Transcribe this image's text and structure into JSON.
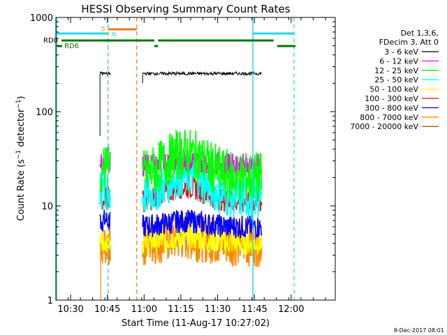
{
  "chart_data": {
    "type": "line",
    "title": "HESSI Observing Summary Count Rates",
    "xlabel": "Start Time (11-Aug-17 10:27:02)",
    "ylabel": "Count Rate (s⁻¹ detector⁻¹)",
    "ylabel_main": "Count Rate (s",
    "ylabel_sup1": "−1",
    "ylabel_mid": " detector",
    "ylabel_sup2": "−1",
    "ylabel_end": ")",
    "yscale": "log",
    "ylim": [
      1,
      1000
    ],
    "xlim_minutes": [
      10.4,
      12.3
    ],
    "y_ticks": [
      {
        "v": 1,
        "label": "1"
      },
      {
        "v": 10,
        "label": "10"
      },
      {
        "v": 100,
        "label": "100"
      },
      {
        "v": 1000,
        "label": "1000"
      }
    ],
    "x_ticks": [
      {
        "t": 10.5,
        "label": "10:30"
      },
      {
        "t": 10.75,
        "label": "10:45"
      },
      {
        "t": 11.0,
        "label": "11:00"
      },
      {
        "t": 11.25,
        "label": "11:15"
      },
      {
        "t": 11.5,
        "label": "11:30"
      },
      {
        "t": 11.75,
        "label": "11:45"
      },
      {
        "t": 12.0,
        "label": "12:00"
      }
    ],
    "legend_header": [
      "Det 1,3,6,",
      "FDecim 3, Att 0"
    ],
    "series": [
      {
        "name": "3 - 6 keV",
        "color": "#000000"
      },
      {
        "name": "6 - 12 keV",
        "color": "#ff00ff"
      },
      {
        "name": "12 - 25 keV",
        "color": "#00ff00"
      },
      {
        "name": "25 - 50 keV",
        "color": "#00ffff"
      },
      {
        "name": "50 - 100 keV",
        "color": "#ffff00"
      },
      {
        "name": "100 - 300 keV",
        "color": "#ff0000"
      },
      {
        "name": "300 - 800 keV",
        "color": "#0000ff"
      },
      {
        "name": "800 - 7000 keV",
        "color": "#ff8800"
      },
      {
        "name": "7000 - 20000 keV",
        "color": "#aa5500"
      }
    ],
    "segments": [
      {
        "t0": 10.7,
        "t1": 10.77,
        "base": [
          250,
          30,
          25,
          15,
          4,
          12,
          7,
          4,
          0
        ]
      },
      {
        "t0": 10.99,
        "t1": 11.8,
        "base": [
          250,
          27,
          20,
          12,
          4,
          11,
          6,
          4,
          0
        ]
      }
    ],
    "annotations": {
      "rd0": "RD0",
      "rd6": "RD6",
      "s": "S",
      "n": "N"
    },
    "footer": "8-Dec-2017 08:01"
  }
}
